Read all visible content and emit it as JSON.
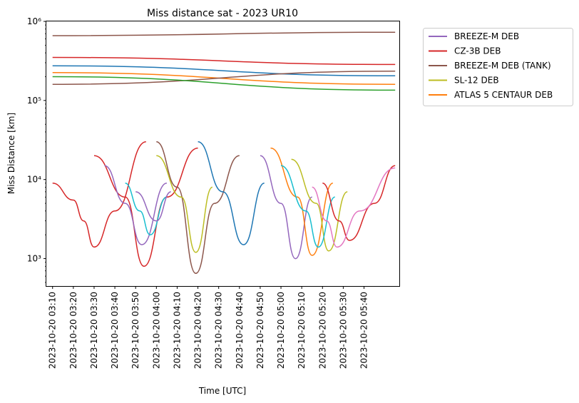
{
  "chart_data": {
    "type": "line",
    "title": "Miss distance sat - 2023 UR10",
    "xlabel": "Time [UTC]",
    "ylabel": "Miss Distance [km]",
    "yscale": "log",
    "ylim": [
      450,
      1000000
    ],
    "y_ticks": [
      1000,
      10000,
      100000,
      1000000
    ],
    "y_tick_labels": [
      "10³",
      "10⁴",
      "10⁵",
      "10⁶"
    ],
    "x_range": [
      "2023-10-20 03:07",
      "2023-10-20 05:57"
    ],
    "x_ticks": [
      "2023-10-20 03:10",
      "2023-10-20 03:20",
      "2023-10-20 03:30",
      "2023-10-20 03:40",
      "2023-10-20 03:50",
      "2023-10-20 04:00",
      "2023-10-20 04:10",
      "2023-10-20 04:20",
      "2023-10-20 04:30",
      "2023-10-20 04:40",
      "2023-10-20 04:50",
      "2023-10-20 05:00",
      "2023-10-20 05:10",
      "2023-10-20 05:20",
      "2023-10-20 05:30",
      "2023-10-20 05:40"
    ],
    "grid": false,
    "legend_position": "outside-upper-right",
    "legend": [
      {
        "name": "BREEZE-M DEB",
        "color": "#9467bd"
      },
      {
        "name": "CZ-3B DEB",
        "color": "#d62728"
      },
      {
        "name": "BREEZE-M DEB (TANK)",
        "color": "#8c564b"
      },
      {
        "name": "SL-12 DEB",
        "color": "#bcbd22"
      },
      {
        "name": "ATLAS 5 CENTAUR DEB",
        "color": "#ff7f0e"
      }
    ],
    "series": [
      {
        "color": "#8c564b",
        "x": [
          "2023-10-20 03:10",
          "2023-10-20 05:55"
        ],
        "y": [
          660000,
          730000
        ]
      },
      {
        "color": "#d62728",
        "x": [
          "2023-10-20 03:10",
          "2023-10-20 05:55"
        ],
        "y": [
          350000,
          285000
        ]
      },
      {
        "color": "#1f77b4",
        "x": [
          "2023-10-20 03:10",
          "2023-10-20 05:55"
        ],
        "y": [
          275000,
          205000
        ]
      },
      {
        "color": "#ff7f0e",
        "x": [
          "2023-10-20 03:10",
          "2023-10-20 05:55"
        ],
        "y": [
          225000,
          160000
        ]
      },
      {
        "color": "#8c564b",
        "x": [
          "2023-10-20 03:10",
          "2023-10-20 05:55"
        ],
        "y": [
          160000,
          235000
        ]
      },
      {
        "color": "#2ca02c",
        "x": [
          "2023-10-20 03:10",
          "2023-10-20 05:55"
        ],
        "y": [
          200000,
          135000
        ]
      },
      {
        "color": "#d62728",
        "x": [
          "2023-10-20 03:10",
          "2023-10-20 03:20",
          "2023-10-20 03:25",
          "2023-10-20 03:30",
          "2023-10-20 03:40",
          "2023-10-20 03:55"
        ],
        "y": [
          9000,
          5500,
          3000,
          1400,
          4000,
          30000
        ]
      },
      {
        "color": "#d62728",
        "x": [
          "2023-10-20 03:30",
          "2023-10-20 03:45",
          "2023-10-20 03:54",
          "2023-10-20 04:05",
          "2023-10-20 04:20"
        ],
        "y": [
          20000,
          6000,
          800,
          6000,
          25000
        ]
      },
      {
        "color": "#8c564b",
        "x": [
          "2023-10-20 04:00",
          "2023-10-20 04:10",
          "2023-10-20 04:19",
          "2023-10-20 04:28",
          "2023-10-20 04:40"
        ],
        "y": [
          30000,
          8000,
          650,
          5000,
          20000
        ]
      },
      {
        "color": "#bcbd22",
        "x": [
          "2023-10-20 04:00",
          "2023-10-20 04:12",
          "2023-10-20 04:19",
          "2023-10-20 04:27"
        ],
        "y": [
          20000,
          6000,
          1200,
          8000
        ]
      },
      {
        "color": "#1f77b4",
        "x": [
          "2023-10-20 04:20",
          "2023-10-20 04:32",
          "2023-10-20 04:42",
          "2023-10-20 04:52"
        ],
        "y": [
          30000,
          7000,
          1500,
          9000
        ]
      },
      {
        "color": "#9467bd",
        "x": [
          "2023-10-20 04:50",
          "2023-10-20 05:00",
          "2023-10-20 05:07",
          "2023-10-20 05:15"
        ],
        "y": [
          20000,
          5000,
          1000,
          6000
        ]
      },
      {
        "color": "#ff7f0e",
        "x": [
          "2023-10-20 04:55",
          "2023-10-20 05:08",
          "2023-10-20 05:15",
          "2023-10-20 05:25"
        ],
        "y": [
          25000,
          6000,
          1100,
          9000
        ]
      },
      {
        "color": "#bcbd22",
        "x": [
          "2023-10-20 05:05",
          "2023-10-20 05:17",
          "2023-10-20 05:23",
          "2023-10-20 05:32"
        ],
        "y": [
          18000,
          5000,
          1250,
          7000
        ]
      },
      {
        "color": "#17becf",
        "x": [
          "2023-10-20 05:00",
          "2023-10-20 05:12",
          "2023-10-20 05:18",
          "2023-10-20 05:26"
        ],
        "y": [
          15000,
          4000,
          1400,
          6000
        ]
      },
      {
        "color": "#d62728",
        "x": [
          "2023-10-20 05:20",
          "2023-10-20 05:28",
          "2023-10-20 05:33",
          "2023-10-20 05:45",
          "2023-10-20 05:55"
        ],
        "y": [
          9000,
          3000,
          1700,
          5000,
          15000
        ]
      },
      {
        "color": "#e377c2",
        "x": [
          "2023-10-20 05:15",
          "2023-10-20 05:22",
          "2023-10-20 05:27",
          "2023-10-20 05:38",
          "2023-10-20 05:55"
        ],
        "y": [
          8000,
          3000,
          1400,
          4000,
          14000
        ]
      },
      {
        "color": "#9467bd",
        "x": [
          "2023-10-20 03:35",
          "2023-10-20 03:45",
          "2023-10-20 03:53",
          "2023-10-20 04:05"
        ],
        "y": [
          15000,
          5000,
          1500,
          9000
        ]
      },
      {
        "color": "#17becf",
        "x": [
          "2023-10-20 03:45",
          "2023-10-20 03:52",
          "2023-10-20 03:57",
          "2023-10-20 04:05"
        ],
        "y": [
          9000,
          4000,
          2000,
          6000
        ]
      },
      {
        "color": "#9467bd",
        "x": [
          "2023-10-20 03:50",
          "2023-10-20 04:00",
          "2023-10-20 04:07"
        ],
        "y": [
          7000,
          3000,
          7000
        ]
      }
    ]
  }
}
